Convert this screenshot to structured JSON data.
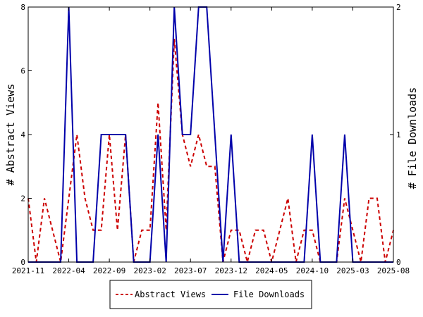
{
  "chart_data": {
    "type": "line",
    "ylabel_left": "# Abstract Views",
    "ylabel_right": "# File Downloads",
    "ylim_left": [
      0,
      8
    ],
    "ylim_right": [
      0,
      2
    ],
    "yticks_left": [
      "0",
      "2",
      "4",
      "6",
      "8"
    ],
    "yticks_right": [
      "0",
      "1",
      "2"
    ],
    "x_range": [
      "2021-11",
      "2025-08"
    ],
    "xticks": [
      "2021-11",
      "2022-04",
      "2022-09",
      "2023-02",
      "2023-07",
      "2023-12",
      "2024-05",
      "2024-10",
      "2025-03",
      "2025-08"
    ],
    "legend_position": "bottom",
    "grid": false,
    "series": [
      {
        "name": "Abstract Views",
        "axis": "left",
        "color": "#cc0000",
        "style": "dashed",
        "x": [
          "2021-11",
          "2021-12",
          "2022-01",
          "2022-02",
          "2022-03",
          "2022-04",
          "2022-05",
          "2022-06",
          "2022-07",
          "2022-08",
          "2022-09",
          "2022-10",
          "2022-11",
          "2022-12",
          "2023-01",
          "2023-02",
          "2023-03",
          "2023-04",
          "2023-05",
          "2023-06",
          "2023-07",
          "2023-08",
          "2023-09",
          "2023-10",
          "2023-11",
          "2023-12",
          "2024-01",
          "2024-02",
          "2024-03",
          "2024-04",
          "2024-05",
          "2024-06",
          "2024-07",
          "2024-08",
          "2024-09",
          "2024-10",
          "2024-11",
          "2024-12",
          "2025-01",
          "2025-02",
          "2025-03",
          "2025-04",
          "2025-05",
          "2025-06",
          "2025-07",
          "2025-08"
        ],
        "values": [
          2,
          0,
          2,
          1,
          0,
          2,
          4,
          2,
          1,
          1,
          4,
          1,
          4,
          0,
          1,
          1,
          5,
          1,
          7,
          4,
          3,
          4,
          3,
          3,
          0,
          1,
          1,
          0,
          1,
          1,
          0,
          1,
          2,
          0,
          1,
          1,
          0,
          0,
          0,
          2,
          1,
          0,
          2,
          2,
          0,
          1
        ]
      },
      {
        "name": "File Downloads",
        "axis": "right",
        "color": "#0000aa",
        "style": "solid",
        "x": [
          "2021-11",
          "2021-12",
          "2022-01",
          "2022-02",
          "2022-03",
          "2022-04",
          "2022-05",
          "2022-06",
          "2022-07",
          "2022-08",
          "2022-09",
          "2022-10",
          "2022-11",
          "2022-12",
          "2023-01",
          "2023-02",
          "2023-03",
          "2023-04",
          "2023-05",
          "2023-06",
          "2023-07",
          "2023-08",
          "2023-09",
          "2023-10",
          "2023-11",
          "2023-12",
          "2024-01",
          "2024-02",
          "2024-03",
          "2024-04",
          "2024-05",
          "2024-06",
          "2024-07",
          "2024-08",
          "2024-09",
          "2024-10",
          "2024-11",
          "2024-12",
          "2025-01",
          "2025-02",
          "2025-03",
          "2025-04",
          "2025-05",
          "2025-06",
          "2025-07",
          "2025-08"
        ],
        "values": [
          0,
          0,
          0,
          0,
          0,
          2,
          0,
          0,
          0,
          1,
          1,
          1,
          1,
          0,
          0,
          0,
          1,
          0,
          2,
          1,
          1,
          2,
          2,
          1,
          0,
          1,
          0,
          0,
          0,
          0,
          0,
          0,
          0,
          0,
          0,
          1,
          0,
          0,
          0,
          1,
          0,
          0,
          0,
          0,
          0,
          0
        ]
      }
    ]
  }
}
